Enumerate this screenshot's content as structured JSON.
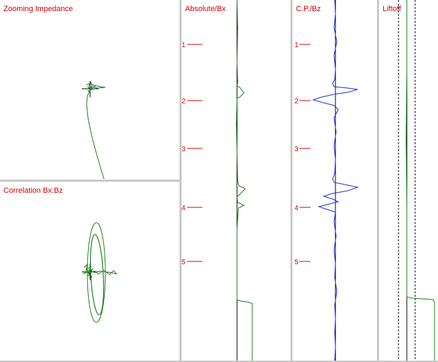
{
  "panels": {
    "zooming_impedance": {
      "title": "Zooming Impedance"
    },
    "correlation": {
      "title": "Correlation Bx:Bz"
    },
    "absolute_bx": {
      "title": "Absolute/Bx"
    },
    "cp_bz": {
      "title": "C.P./Bz"
    },
    "liftoff": {
      "title": "Liftoff"
    }
  },
  "depth_ticks": [
    "1",
    "2",
    "3",
    "4",
    "5"
  ],
  "colors": {
    "title_red": "#d40000",
    "trace_green": "#1a7f1a",
    "trace_blue": "#1f2bd6",
    "axis_black": "#000000",
    "background": "#ffffff",
    "separator": "#c8c8c8"
  }
}
